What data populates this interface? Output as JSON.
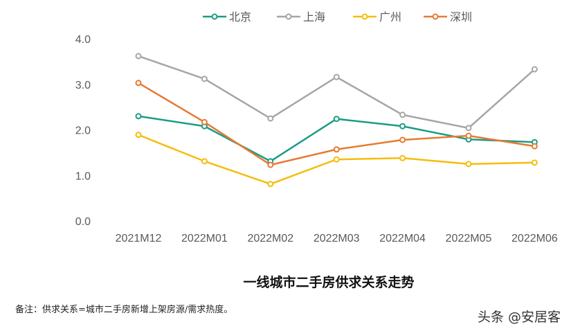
{
  "chart_data": {
    "type": "line",
    "title": "一线城市二手房供求关系走势",
    "categories": [
      "2021M12",
      "2022M01",
      "2022M02",
      "2022M03",
      "2022M04",
      "2022M05",
      "2022M06"
    ],
    "ylim": [
      0,
      4
    ],
    "yticks": [
      "0.0",
      "1.0",
      "2.0",
      "3.0",
      "4.0"
    ],
    "grid": false,
    "legend": "top",
    "series": [
      {
        "name": "北京",
        "color": "#1a9c84",
        "values": [
          2.3,
          2.08,
          1.31,
          2.24,
          2.08,
          1.79,
          1.73
        ]
      },
      {
        "name": "上海",
        "color": "#a5a5a5",
        "values": [
          3.62,
          3.12,
          2.25,
          3.16,
          2.33,
          2.04,
          3.33
        ]
      },
      {
        "name": "广州",
        "color": "#f5bd0a",
        "values": [
          1.89,
          1.31,
          0.81,
          1.35,
          1.38,
          1.25,
          1.28
        ]
      },
      {
        "name": "深圳",
        "color": "#e57a33",
        "values": [
          3.03,
          2.17,
          1.23,
          1.57,
          1.78,
          1.87,
          1.64
        ]
      }
    ]
  },
  "note": "备注：供求关系=城市二手房新增上架房源/需求热度。",
  "watermark": "头条 @安居客"
}
